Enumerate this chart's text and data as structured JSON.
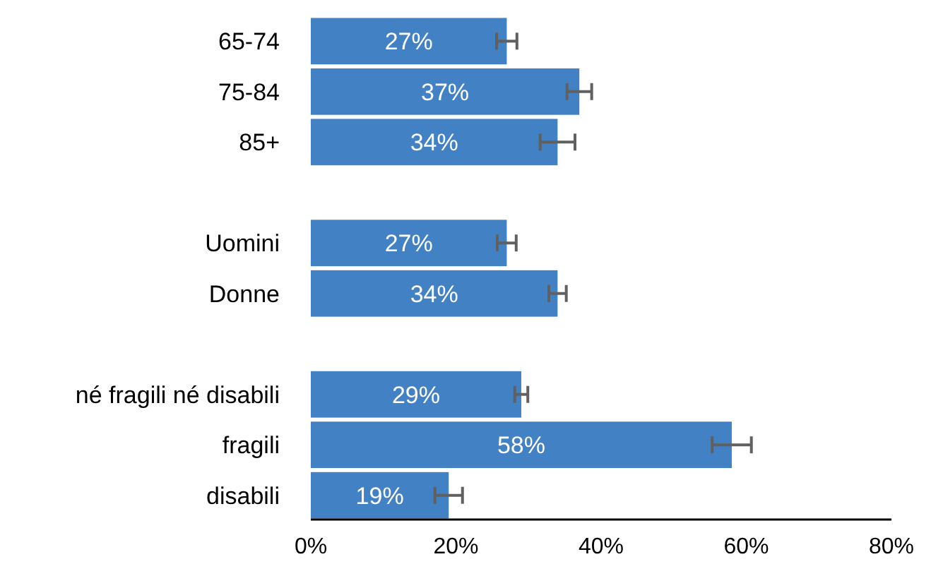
{
  "chart_data": {
    "type": "bar",
    "orientation": "horizontal",
    "categories": [
      "65-74",
      "75-84",
      "85+",
      null,
      "Uomini",
      "Donne",
      null,
      "né fragili né disabili",
      "fragili",
      "disabili"
    ],
    "values": [
      27,
      37,
      34,
      null,
      27,
      34,
      null,
      29,
      58,
      19
    ],
    "errors": [
      1.4,
      1.7,
      2.4,
      null,
      1.3,
      1.2,
      null,
      0.9,
      2.7,
      1.9
    ],
    "color": "#4281c4",
    "xlim": [
      0,
      80
    ],
    "xticks": [
      {
        "value": 0,
        "label": "0%"
      },
      {
        "value": 20,
        "label": "20%"
      },
      {
        "value": 40,
        "label": "40%"
      },
      {
        "value": 60,
        "label": "60%"
      },
      {
        "value": 80,
        "label": "80%"
      }
    ],
    "value_labels": [
      "27%",
      "37%",
      "34%",
      null,
      "27%",
      "34%",
      null,
      "29%",
      "58%",
      "19%"
    ]
  }
}
